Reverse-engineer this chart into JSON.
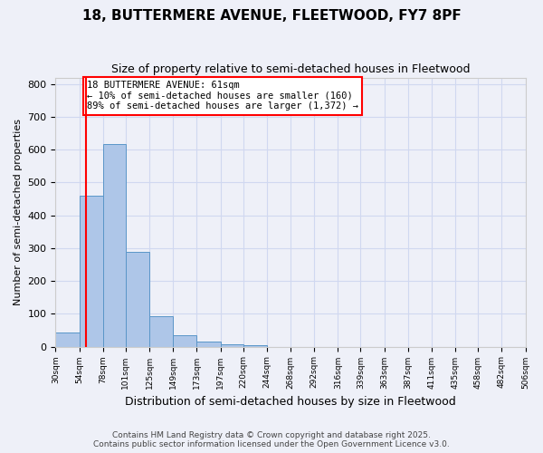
{
  "title1": "18, BUTTERMERE AVENUE, FLEETWOOD, FY7 8PF",
  "title2": "Size of property relative to semi-detached houses in Fleetwood",
  "xlabel": "Distribution of semi-detached houses by size in Fleetwood",
  "ylabel": "Number of semi-detached properties",
  "bar_values": [
    44,
    460,
    617,
    290,
    93,
    34,
    14,
    8,
    5,
    0,
    0,
    0,
    0,
    0,
    0,
    0,
    0,
    0,
    0
  ],
  "bin_labels": [
    "30sqm",
    "54sqm",
    "78sqm",
    "101sqm",
    "125sqm",
    "149sqm",
    "173sqm",
    "197sqm",
    "220sqm",
    "244sqm",
    "268sqm",
    "292sqm",
    "316sqm",
    "339sqm",
    "363sqm",
    "387sqm",
    "411sqm",
    "435sqm",
    "458sqm",
    "482sqm",
    "506sqm"
  ],
  "bar_color": "#aec6e8",
  "bar_edge_color": "#5a96c8",
  "grid_color": "#d0d8f0",
  "background_color": "#eef0f8",
  "red_line_x": 61,
  "bin_edges": [
    30,
    54,
    78,
    101,
    125,
    149,
    173,
    197,
    220,
    244,
    268,
    292,
    316,
    339,
    363,
    387,
    411,
    435,
    458,
    482,
    506
  ],
  "annotation_text": "18 BUTTERMERE AVENUE: 61sqm\n← 10% of semi-detached houses are smaller (160)\n89% of semi-detached houses are larger (1,372) →",
  "annotation_box_color": "white",
  "annotation_box_edge": "red",
  "footer": "Contains HM Land Registry data © Crown copyright and database right 2025.\nContains public sector information licensed under the Open Government Licence v3.0.",
  "ylim": [
    0,
    820
  ],
  "yticks": [
    0,
    100,
    200,
    300,
    400,
    500,
    600,
    700,
    800
  ]
}
